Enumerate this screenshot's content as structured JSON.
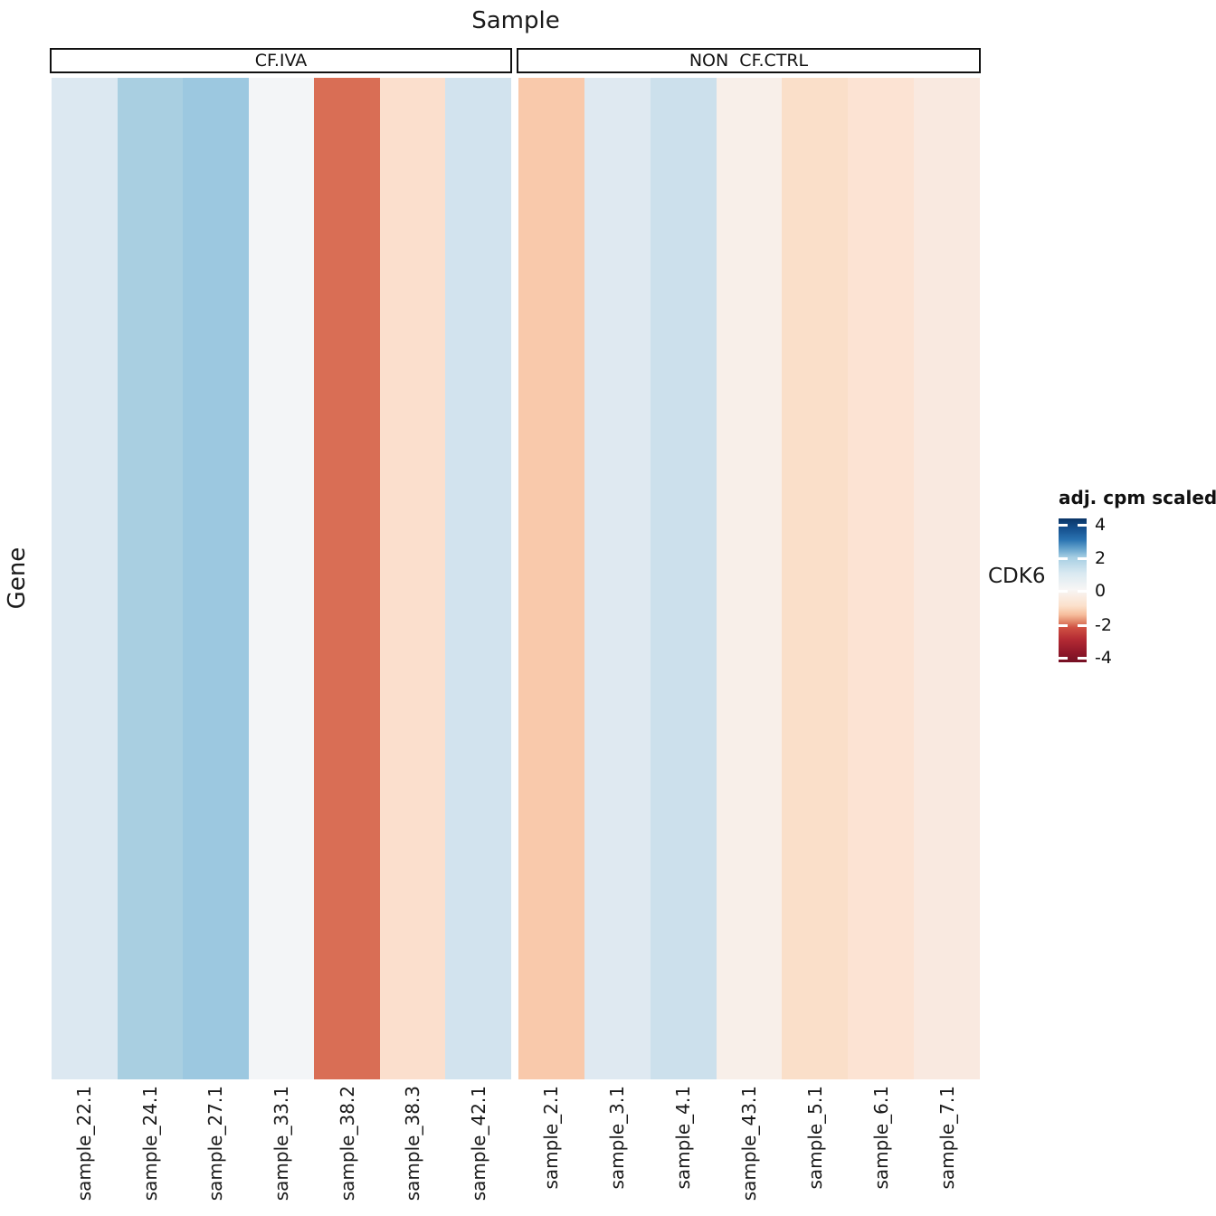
{
  "title": "Sample",
  "y_axis_label": "Gene",
  "row_label": "CDK6",
  "legend": {
    "title": "adj. cpm scaled",
    "ticks": [
      "4",
      "2",
      "0",
      "-2",
      "-4"
    ]
  },
  "chart_data": {
    "type": "heatmap",
    "title": "Sample",
    "xlabel": "Sample",
    "ylabel": "Gene",
    "rows": [
      "CDK6"
    ],
    "legend_title": "adj. cpm scaled",
    "colorscale": {
      "min": -4,
      "max": 4,
      "palette": "RdBu diverging (blue = high, white = 0, red = low)",
      "high_color": "#0a3566",
      "mid_color": "#f8f6f5",
      "low_color": "#751024"
    },
    "legend_position": "right",
    "grid": false,
    "facets": [
      {
        "label": "CF.IVA",
        "samples": [
          "sample_22.1",
          "sample_24.1",
          "sample_27.1",
          "sample_33.1",
          "sample_38.2",
          "sample_38.3",
          "sample_42.1"
        ],
        "values": [
          0.6,
          1.4,
          1.6,
          0.1,
          -2.2,
          -0.7,
          0.7
        ],
        "colors": [
          "#dce8f1",
          "#a9cfe1",
          "#9cc8e0",
          "#f3f5f7",
          "#d96e55",
          "#fbdfcd",
          "#d2e3ee"
        ]
      },
      {
        "label": "NON  CF.CTRL",
        "samples": [
          "sample_2.1",
          "sample_3.1",
          "sample_4.1",
          "sample_43.1",
          "sample_5.1",
          "sample_6.1",
          "sample_7.1"
        ],
        "values": [
          -1.3,
          0.5,
          0.8,
          -0.2,
          -0.75,
          -0.6,
          -0.4
        ],
        "colors": [
          "#f9c9ab",
          "#dfe9f1",
          "#cce0ec",
          "#f8efe9",
          "#fadfc9",
          "#fce3d3",
          "#f9e9e0"
        ]
      }
    ]
  }
}
